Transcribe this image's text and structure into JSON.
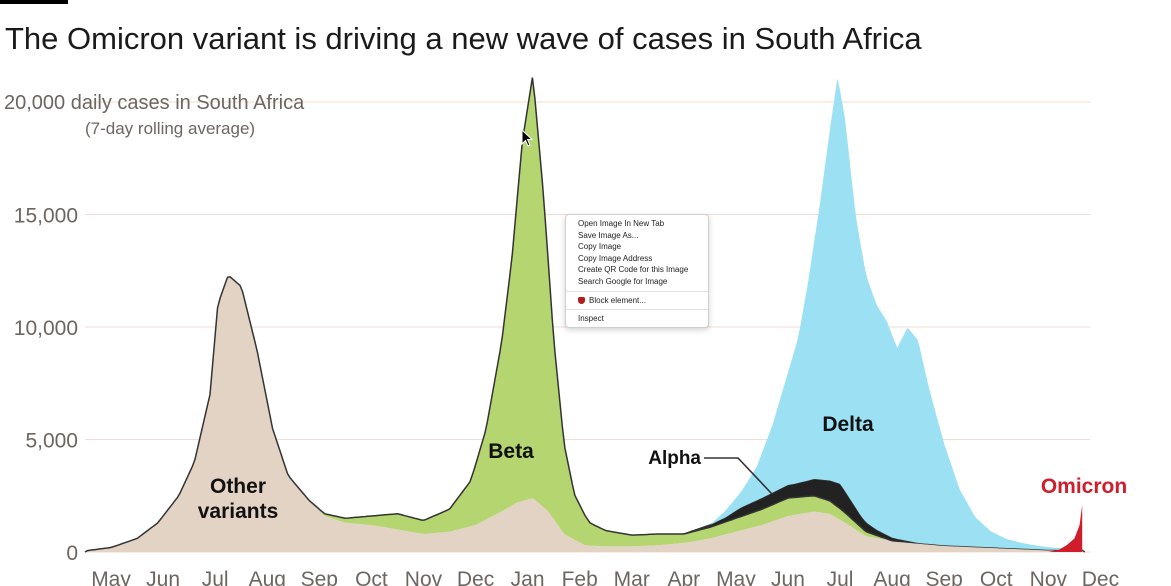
{
  "chart_data": {
    "type": "area",
    "title": "The Omicron variant is driving a new wave of cases in South Africa",
    "ylabel": "20,000 daily cases in South Africa",
    "ylabel_sub": "(7-day rolling average)",
    "ylim": [
      0,
      20000
    ],
    "yticks": [
      {
        "value": 0,
        "label": "0"
      },
      {
        "value": 5000,
        "label": "5,000"
      },
      {
        "value": 10000,
        "label": "10,000"
      },
      {
        "value": 15000,
        "label": "15,000"
      }
    ],
    "xlim": [
      0,
      19.3
    ],
    "x_months": [
      "May",
      "Jun",
      "Jul",
      "Aug",
      "Sep",
      "Oct",
      "Nov",
      "Dec",
      "Jan",
      "Feb",
      "Mar",
      "Apr",
      "May",
      "Jun",
      "Jul",
      "Aug",
      "Sep",
      "Oct",
      "Nov",
      "Dec"
    ],
    "series": [
      {
        "name": "Other variants",
        "label": "Other\nvariants",
        "color": "#e3d3c5",
        "x": [
          0,
          0.5,
          1,
          1.4,
          1.8,
          2.1,
          2.4,
          2.55,
          2.75,
          3.0,
          3.3,
          3.6,
          3.9,
          4.3,
          4.6,
          5.0,
          5.5,
          6,
          6.5,
          7,
          7.5,
          8,
          8.3,
          8.6,
          8.9,
          9.2,
          9.6,
          10,
          10.5,
          11,
          11.5,
          12,
          12.5,
          13,
          13.5,
          14,
          14.3,
          14.6,
          15,
          15.5,
          16,
          16.5,
          17,
          17.5,
          18,
          18.5,
          19.2
        ],
        "values": [
          50,
          200,
          600,
          1300,
          2500,
          4000,
          7000,
          11000,
          12300,
          11800,
          9000,
          5500,
          3400,
          2300,
          1600,
          1300,
          1200,
          1000,
          800,
          900,
          1200,
          1800,
          2200,
          2400,
          1800,
          800,
          300,
          250,
          250,
          300,
          400,
          600,
          900,
          1200,
          1600,
          1800,
          1700,
          1300,
          700,
          500,
          400,
          300,
          250,
          200,
          150,
          100,
          80
        ]
      },
      {
        "name": "Beta",
        "label": "Beta",
        "color": "#b4d56f",
        "x": [
          3.9,
          4.3,
          4.6,
          5.0,
          5.5,
          6,
          6.5,
          7,
          7.4,
          7.7,
          8,
          8.2,
          8.4,
          8.6,
          8.8,
          9.0,
          9.2,
          9.4,
          9.7,
          10,
          10.5,
          11,
          11.5,
          12,
          12.5,
          13,
          13.5,
          14,
          14.5,
          15,
          15.5
        ],
        "values": [
          0,
          0,
          100,
          200,
          400,
          700,
          600,
          1000,
          2000,
          4000,
          7500,
          11000,
          16000,
          18800,
          14000,
          8000,
          4000,
          2000,
          1000,
          700,
          500,
          500,
          400,
          500,
          600,
          700,
          800,
          700,
          500,
          200,
          0
        ]
      },
      {
        "name": "Alpha",
        "label": "Alpha",
        "color": "#222222",
        "x": [
          11,
          11.5,
          12,
          12.3,
          12.6,
          13,
          13.3,
          13.6,
          13.9,
          14.1,
          14.3,
          14.5,
          14.7,
          14.9,
          15.2,
          15.6,
          16
        ],
        "values": [
          0,
          0,
          100,
          200,
          400,
          500,
          550,
          600,
          700,
          800,
          900,
          1100,
          800,
          500,
          250,
          100,
          0
        ]
      },
      {
        "name": "Delta",
        "label": "Delta",
        "color": "#9ce1f3",
        "x": [
          12,
          12.3,
          12.6,
          12.9,
          13.2,
          13.5,
          13.7,
          13.9,
          14.1,
          14.3,
          14.45,
          14.6,
          14.8,
          15.0,
          15.2,
          15.4,
          15.6,
          15.8,
          16.0,
          16.2,
          16.5,
          16.8,
          17.1,
          17.4,
          17.7,
          18.0,
          18.3,
          18.6,
          18.9,
          19.2
        ],
        "values": [
          0,
          300,
          700,
          1500,
          3000,
          5000,
          6500,
          9000,
          12000,
          15500,
          18000,
          16500,
          13000,
          11000,
          10000,
          9500,
          8500,
          9500,
          9000,
          7000,
          4500,
          2500,
          1300,
          700,
          400,
          250,
          150,
          100,
          50,
          0
        ]
      },
      {
        "name": "Omicron",
        "label": "Omicron",
        "color": "#cf1d2c",
        "x": [
          18.5,
          18.7,
          18.85,
          19.0,
          19.1,
          19.15,
          19.15
        ],
        "values": [
          0,
          100,
          300,
          600,
          1200,
          2100,
          0
        ]
      }
    ],
    "annotations": [
      {
        "text": "Alpha",
        "target": "Alpha",
        "leader": true
      }
    ]
  },
  "context_menu": {
    "items": [
      "Open Image In New Tab",
      "Save Image As...",
      "Copy Image",
      "Copy Image Address",
      "Create QR Code for this Image",
      "Search Google for Image"
    ],
    "block": "Block element...",
    "inspect": "Inspect"
  }
}
